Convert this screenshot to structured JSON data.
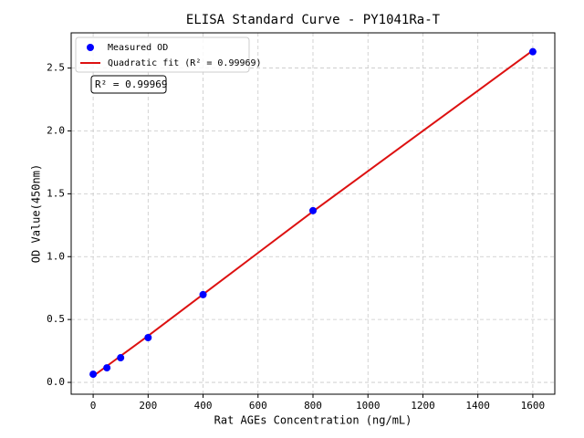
{
  "chart_data": {
    "type": "scatter",
    "title": "ELISA Standard Curve - PY1041Ra-T",
    "x_label": "Rat AGEs Concentration (ng/mL)",
    "y_label": "OD Value(450nm)",
    "series": [
      {
        "name": "Measured OD",
        "color": "#0000ff",
        "type": "scatter",
        "x": [
          0,
          50,
          100,
          200,
          400,
          800,
          1600
        ],
        "values": [
          0.065,
          0.116,
          0.196,
          0.356,
          0.698,
          1.366,
          2.63
        ]
      },
      {
        "name": "Quadratic fit (R² = 0.99969)",
        "color": "#dd1111",
        "type": "line",
        "x": [
          0,
          200,
          400,
          600,
          800,
          1000,
          1200,
          1400,
          1600
        ],
        "values": [
          0.05,
          0.37,
          0.7,
          1.03,
          1.36,
          1.68,
          2.0,
          2.32,
          2.64
        ]
      }
    ],
    "annotations": [
      "R² = 0.99969"
    ],
    "xlim": [
      -80,
      1680
    ],
    "ylim": [
      -0.094,
      2.78
    ],
    "xticks": [
      0,
      200,
      400,
      600,
      800,
      1000,
      1200,
      1400,
      1600
    ],
    "yticks": [
      {
        "value": 0,
        "label": "0.0"
      },
      {
        "value": 0.5,
        "label": "0.5"
      },
      {
        "value": 1,
        "label": "1.0"
      },
      {
        "value": 1.5,
        "label": "1.5"
      },
      {
        "value": 2,
        "label": "2.0"
      },
      {
        "value": 2.5,
        "label": "2.5"
      }
    ],
    "grid": true,
    "legend": "upper-left"
  }
}
